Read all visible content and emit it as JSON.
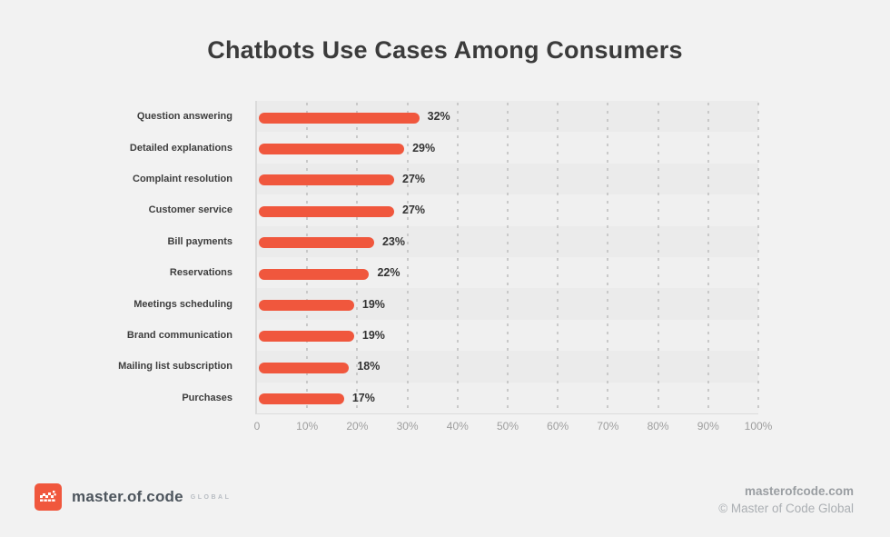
{
  "title": "Chatbots Use Cases Among Consumers",
  "chart_data": {
    "type": "bar",
    "orientation": "horizontal",
    "title": "Chatbots Use Cases Among Consumers",
    "categories": [
      "Question answering",
      "Detailed explanations",
      "Complaint resolution",
      "Customer service",
      "Bill payments",
      "Reservations",
      "Meetings scheduling",
      "Brand communication",
      "Mailing list subscription",
      "Purchases"
    ],
    "values": [
      32,
      29,
      27,
      27,
      23,
      22,
      19,
      19,
      18,
      17
    ],
    "value_suffix": "%",
    "xlabel": "",
    "ylabel": "",
    "xlim": [
      0,
      100
    ],
    "xticks": [
      "0",
      "10%",
      "20%",
      "30%",
      "40%",
      "50%",
      "60%",
      "70%",
      "80%",
      "90%",
      "100%"
    ],
    "grid": "vertical-dotted",
    "legend": "none",
    "bar_color": "#F0573D",
    "stripe_colors": [
      "#EBEBEB",
      "#F0F0F0"
    ]
  },
  "footer": {
    "brand": "master.of.code",
    "brand_suffix": "GLOBAL",
    "website": "masterofcode.com",
    "copyright": "© Master of Code Global"
  },
  "colors": {
    "background": "#F2F2F2",
    "accent": "#F0573D",
    "title_text": "#3B3B3B",
    "tick_text": "#9E9E9E"
  }
}
